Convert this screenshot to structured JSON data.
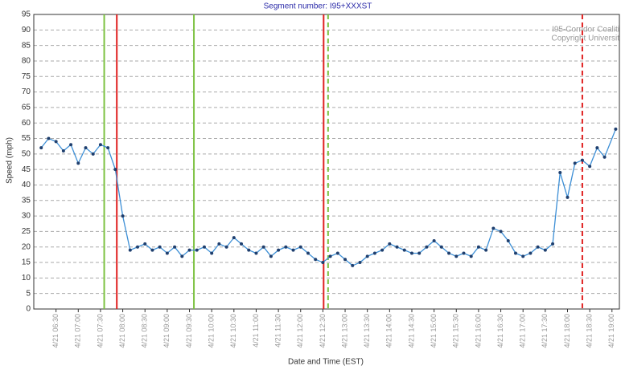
{
  "chart_data": {
    "type": "line",
    "title": "Segment number: I95+XXXST",
    "watermark": [
      "I95-Corridor Coaliti",
      "Copyright Universit"
    ],
    "xlabel": "Date and Time (EST)",
    "ylabel": "Speed (mph)",
    "xlim": [
      360,
      1150
    ],
    "ylim": [
      0,
      95
    ],
    "yticks": [
      0,
      5,
      10,
      15,
      20,
      25,
      30,
      35,
      40,
      45,
      50,
      55,
      60,
      65,
      70,
      75,
      80,
      85,
      90,
      95
    ],
    "xticks": [
      {
        "value": 390,
        "label": "4/21 06:30"
      },
      {
        "value": 420,
        "label": "4/21 07:00"
      },
      {
        "value": 450,
        "label": "4/21 07:30"
      },
      {
        "value": 480,
        "label": "4/21 08:00"
      },
      {
        "value": 510,
        "label": "4/21 08:30"
      },
      {
        "value": 540,
        "label": "4/21 09:00"
      },
      {
        "value": 570,
        "label": "4/21 09:30"
      },
      {
        "value": 600,
        "label": "4/21 10:00"
      },
      {
        "value": 630,
        "label": "4/21 10:30"
      },
      {
        "value": 660,
        "label": "4/21 11:00"
      },
      {
        "value": 690,
        "label": "4/21 11:30"
      },
      {
        "value": 720,
        "label": "4/21 12:00"
      },
      {
        "value": 750,
        "label": "4/21 12:30"
      },
      {
        "value": 780,
        "label": "4/21 13:00"
      },
      {
        "value": 810,
        "label": "4/21 13:30"
      },
      {
        "value": 840,
        "label": "4/21 14:00"
      },
      {
        "value": 870,
        "label": "4/21 14:30"
      },
      {
        "value": 900,
        "label": "4/21 15:00"
      },
      {
        "value": 930,
        "label": "4/21 15:30"
      },
      {
        "value": 960,
        "label": "4/21 16:00"
      },
      {
        "value": 990,
        "label": "4/21 16:30"
      },
      {
        "value": 1020,
        "label": "4/21 17:00"
      },
      {
        "value": 1050,
        "label": "4/21 17:30"
      },
      {
        "value": 1080,
        "label": "4/21 18:00"
      },
      {
        "value": 1110,
        "label": "4/21 18:30"
      },
      {
        "value": 1140,
        "label": "4/21 19:00"
      }
    ],
    "grid": true,
    "x": [
      370,
      380,
      390,
      400,
      410,
      420,
      430,
      440,
      450,
      460,
      470,
      480,
      490,
      500,
      510,
      520,
      530,
      540,
      550,
      560,
      570,
      580,
      590,
      600,
      610,
      620,
      630,
      640,
      650,
      660,
      670,
      680,
      690,
      700,
      710,
      720,
      730,
      740,
      750,
      760,
      770,
      780,
      790,
      800,
      810,
      820,
      830,
      840,
      850,
      860,
      870,
      880,
      890,
      900,
      910,
      920,
      930,
      940,
      950,
      960,
      970,
      980,
      990,
      1000,
      1010,
      1020,
      1030,
      1040,
      1050,
      1060,
      1070,
      1080,
      1090,
      1100,
      1110,
      1120,
      1130,
      1145
    ],
    "series": [
      {
        "name": "Speed",
        "color": "#3d8fd6",
        "values": [
          52,
          55,
          54,
          51,
          53,
          47,
          52,
          50,
          53,
          52,
          45,
          30,
          19,
          20,
          21,
          19,
          20,
          18,
          20,
          17,
          19,
          19,
          20,
          18,
          21,
          20,
          23,
          21,
          19,
          18,
          20,
          17,
          19,
          20,
          19,
          20,
          18,
          16,
          15,
          17,
          18,
          16,
          14,
          15,
          17,
          18,
          19,
          21,
          20,
          19,
          18,
          18,
          20,
          22,
          20,
          18,
          17,
          18,
          17,
          20,
          19,
          26,
          25,
          22,
          18,
          17,
          18,
          20,
          19,
          21,
          44,
          36,
          47,
          48,
          46,
          52,
          49,
          58
        ]
      }
    ],
    "vlines": [
      {
        "x": 455,
        "color": "#7dc242",
        "dashed": false
      },
      {
        "x": 472,
        "color": "#e02020",
        "dashed": false
      },
      {
        "x": 576,
        "color": "#7dc242",
        "dashed": false
      },
      {
        "x": 751,
        "color": "#e02020",
        "dashed": false
      },
      {
        "x": 757,
        "color": "#7dc242",
        "dashed": true
      },
      {
        "x": 1100,
        "color": "#e02020",
        "dashed": true
      }
    ]
  }
}
